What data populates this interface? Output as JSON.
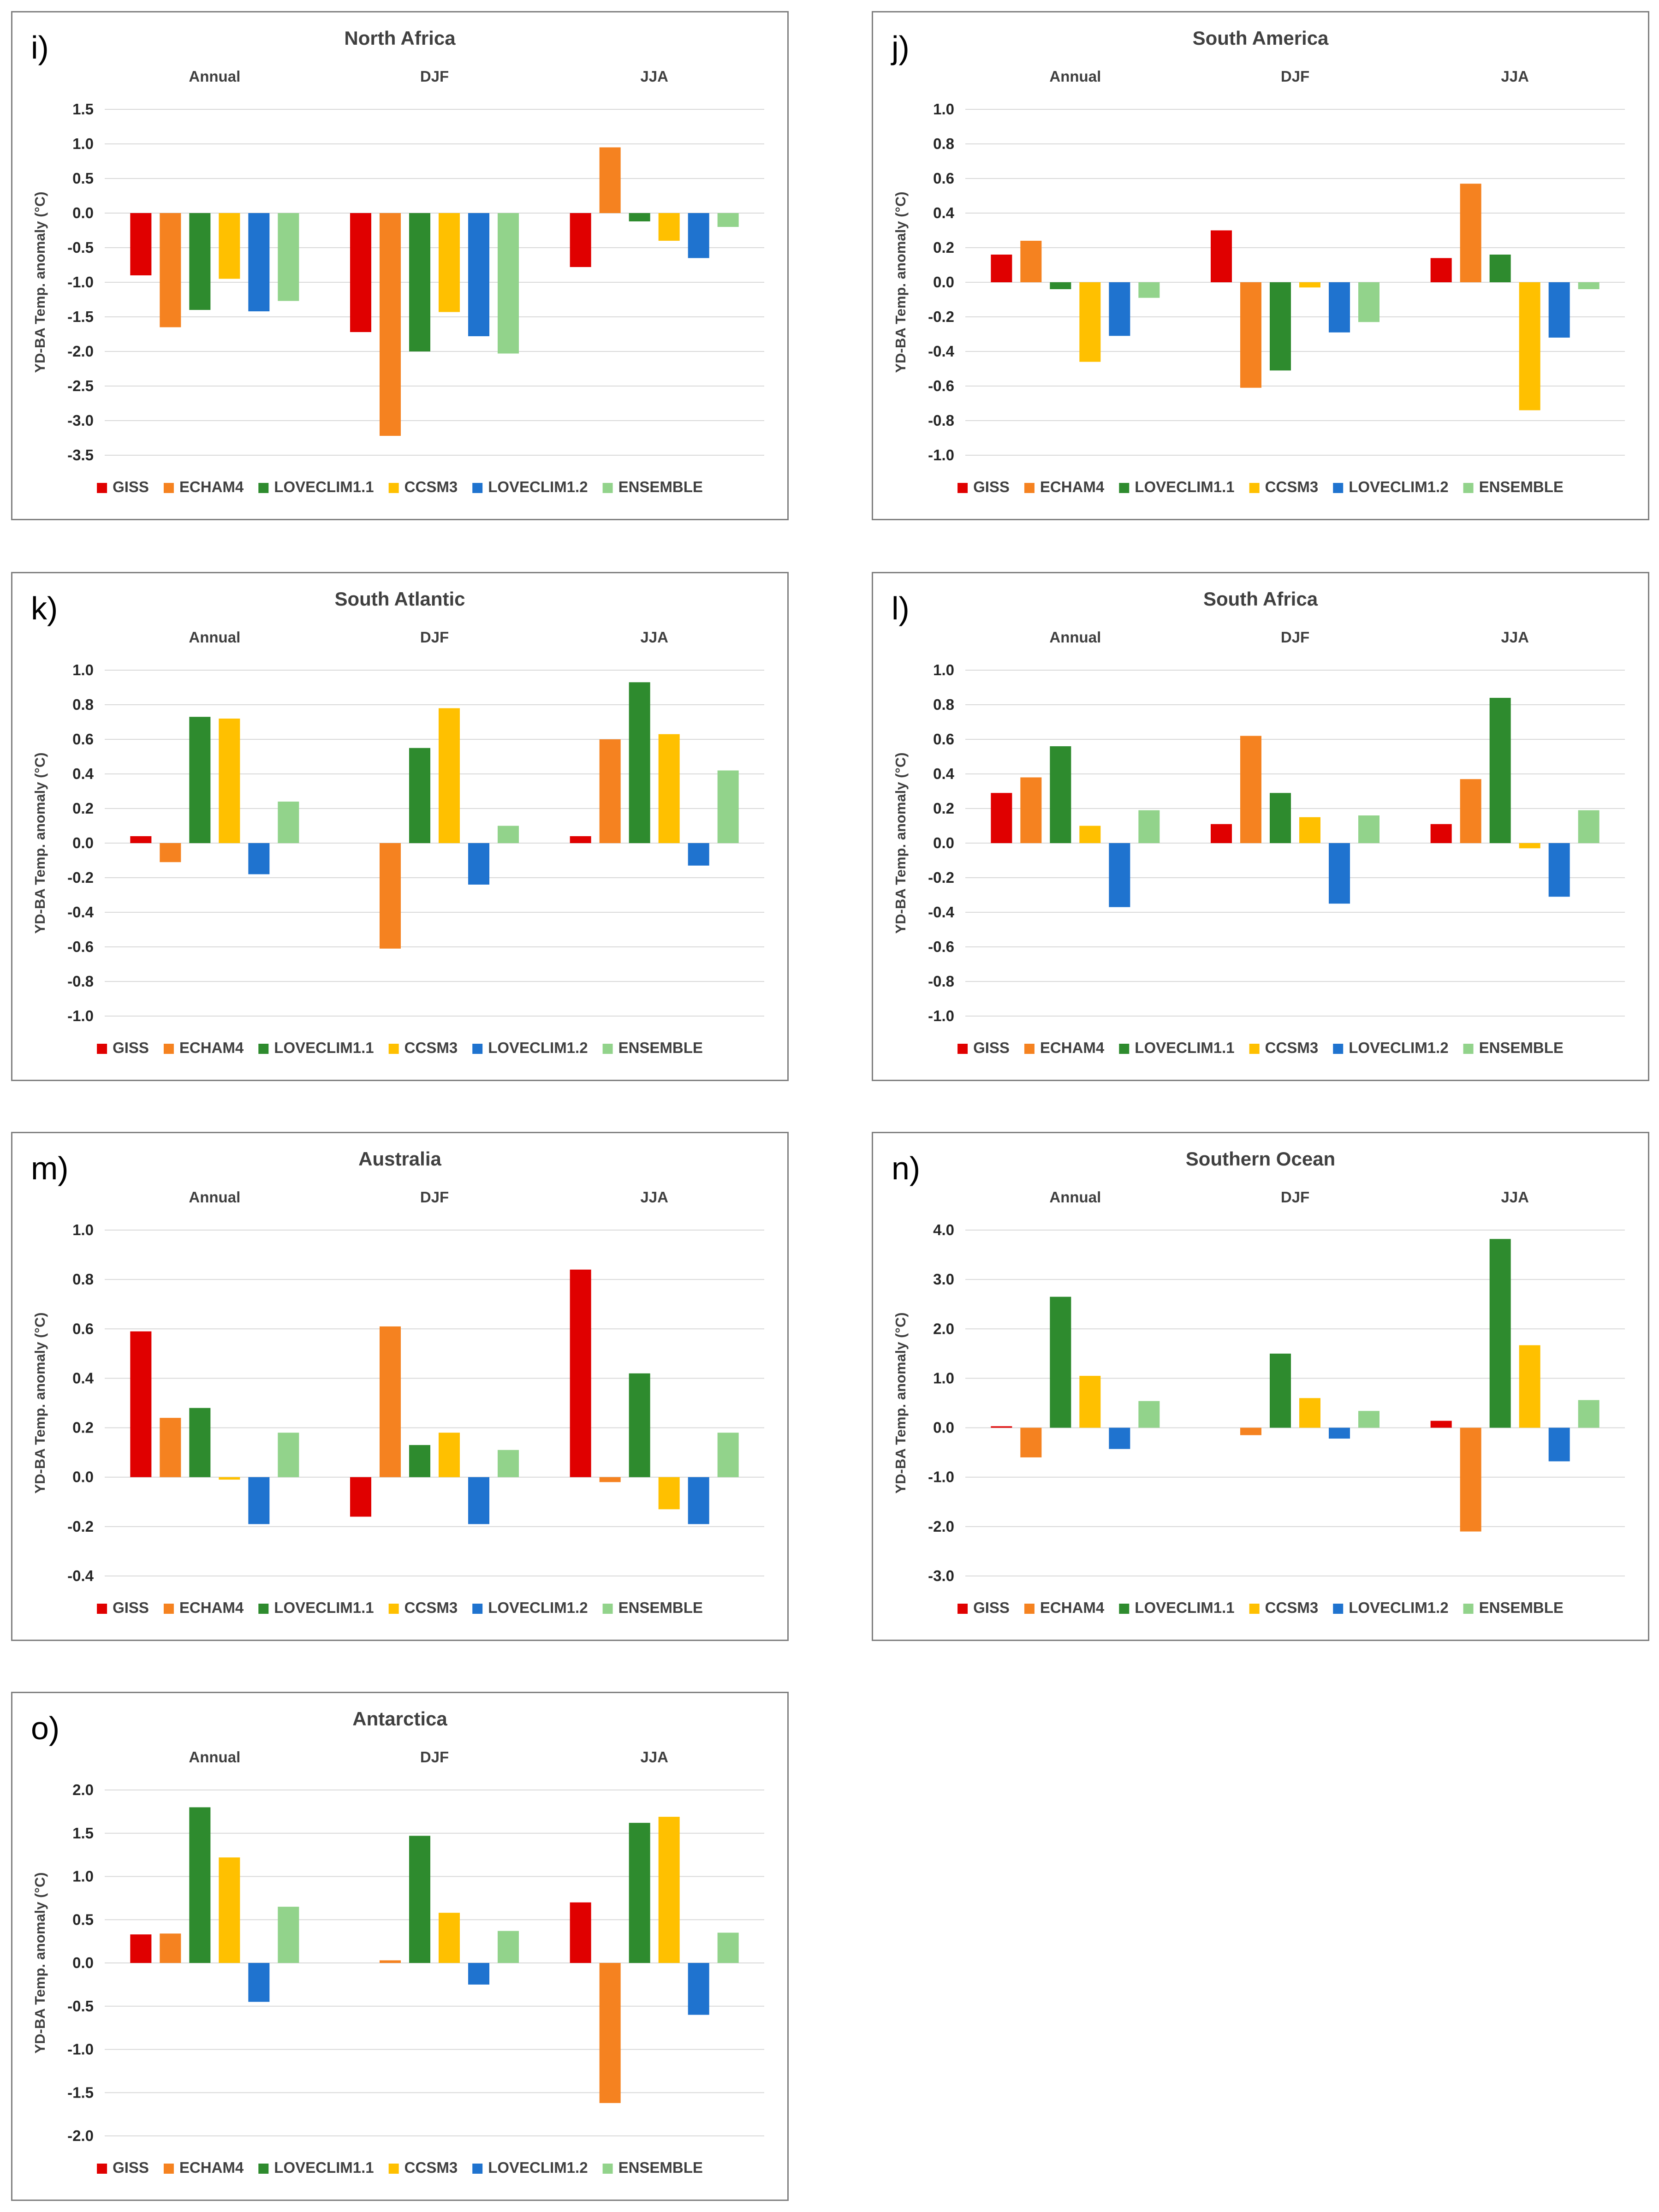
{
  "colors": {
    "GISS": "#e00000",
    "ECHAM4": "#f58220",
    "LOVECLIM1.1": "#2e8b2e",
    "CCSM3": "#ffc000",
    "LOVECLIM1.2": "#1f73cf",
    "ENSEMBLE": "#92d38b"
  },
  "series_names": [
    "GISS",
    "ECHAM4",
    "LOVECLIM1.1",
    "CCSM3",
    "LOVECLIM1.2",
    "ENSEMBLE"
  ],
  "chart_data": [
    {
      "id": "i",
      "letter": "i)",
      "type": "bar",
      "title": "North Africa",
      "categories": [
        "Annual",
        "DJF",
        "JJA"
      ],
      "ylabel": "YD-BA Temp. anomaly (°C)",
      "ylim": [
        -3.5,
        1.5
      ],
      "ytick_step": 0.5,
      "ytick_decimals": 1,
      "y_ticks": [
        "1.5",
        "1.0",
        "0.5",
        "0.0",
        "-0.5",
        "-1.0",
        "-1.5",
        "-2.0",
        "-2.5",
        "-3.0",
        "-3.5"
      ],
      "series": [
        {
          "name": "GISS",
          "values": [
            -0.9,
            -1.72,
            -0.78
          ]
        },
        {
          "name": "ECHAM4",
          "values": [
            -1.65,
            -3.22,
            0.95
          ]
        },
        {
          "name": "LOVECLIM1.1",
          "values": [
            -1.4,
            -2.0,
            -0.12
          ]
        },
        {
          "name": "CCSM3",
          "values": [
            -0.95,
            -1.43,
            -0.4
          ]
        },
        {
          "name": "LOVECLIM1.2",
          "values": [
            -1.42,
            -1.78,
            -0.65
          ]
        },
        {
          "name": "ENSEMBLE",
          "values": [
            -1.27,
            -2.03,
            -0.2
          ]
        }
      ]
    },
    {
      "id": "j",
      "letter": "j)",
      "type": "bar",
      "title": "South America",
      "categories": [
        "Annual",
        "DJF",
        "JJA"
      ],
      "ylabel": "YD-BA Temp. anomaly (°C)",
      "ylim": [
        -1.0,
        1.0
      ],
      "ytick_step": 0.2,
      "ytick_decimals": 1,
      "y_ticks": [
        "1.0",
        "0.8",
        "0.6",
        "0.4",
        "0.2",
        "0.0",
        "-0.2",
        "-0.4",
        "-0.6",
        "-0.8",
        "-1.0"
      ],
      "series": [
        {
          "name": "GISS",
          "values": [
            0.16,
            0.3,
            0.14
          ]
        },
        {
          "name": "ECHAM4",
          "values": [
            0.24,
            -0.61,
            0.57
          ]
        },
        {
          "name": "LOVECLIM1.1",
          "values": [
            -0.04,
            -0.51,
            0.16
          ]
        },
        {
          "name": "CCSM3",
          "values": [
            -0.46,
            -0.03,
            -0.74
          ]
        },
        {
          "name": "LOVECLIM1.2",
          "values": [
            -0.31,
            -0.29,
            -0.32
          ]
        },
        {
          "name": "ENSEMBLE",
          "values": [
            -0.09,
            -0.23,
            -0.04
          ]
        }
      ]
    },
    {
      "id": "k",
      "letter": "k)",
      "type": "bar",
      "title": "South Atlantic",
      "categories": [
        "Annual",
        "DJF",
        "JJA"
      ],
      "ylabel": "YD-BA Temp. anomaly (°C)",
      "ylim": [
        -1.0,
        1.0
      ],
      "ytick_step": 0.2,
      "ytick_decimals": 1,
      "y_ticks": [
        "1.0",
        "0.8",
        "0.6",
        "0.4",
        "0.2",
        "0.0",
        "-0.2",
        "-0.4",
        "-0.6",
        "-0.8",
        "-1.0"
      ],
      "series": [
        {
          "name": "GISS",
          "values": [
            0.04,
            0.0,
            0.04
          ]
        },
        {
          "name": "ECHAM4",
          "values": [
            -0.11,
            -0.61,
            0.6
          ]
        },
        {
          "name": "LOVECLIM1.1",
          "values": [
            0.73,
            0.55,
            0.93
          ]
        },
        {
          "name": "CCSM3",
          "values": [
            0.72,
            0.78,
            0.63
          ]
        },
        {
          "name": "LOVECLIM1.2",
          "values": [
            -0.18,
            -0.24,
            -0.13
          ]
        },
        {
          "name": "ENSEMBLE",
          "values": [
            0.24,
            0.1,
            0.42
          ]
        }
      ]
    },
    {
      "id": "l",
      "letter": "l)",
      "type": "bar",
      "title": "South Africa",
      "categories": [
        "Annual",
        "DJF",
        "JJA"
      ],
      "ylabel": "YD-BA Temp. anomaly (°C)",
      "ylim": [
        -1.0,
        1.0
      ],
      "ytick_step": 0.2,
      "ytick_decimals": 1,
      "y_ticks": [
        "1.0",
        "0.8",
        "0.6",
        "0.4",
        "0.2",
        "0.0",
        "-0.2",
        "-0.4",
        "-0.6",
        "-0.8",
        "-1.0"
      ],
      "series": [
        {
          "name": "GISS",
          "values": [
            0.29,
            0.11,
            0.11
          ]
        },
        {
          "name": "ECHAM4",
          "values": [
            0.38,
            0.62,
            0.37
          ]
        },
        {
          "name": "LOVECLIM1.1",
          "values": [
            0.56,
            0.29,
            0.84
          ]
        },
        {
          "name": "CCSM3",
          "values": [
            0.1,
            0.15,
            -0.03
          ]
        },
        {
          "name": "LOVECLIM1.2",
          "values": [
            -0.37,
            -0.35,
            -0.31
          ]
        },
        {
          "name": "ENSEMBLE",
          "values": [
            0.19,
            0.16,
            0.19
          ]
        }
      ]
    },
    {
      "id": "m",
      "letter": "m)",
      "type": "bar",
      "title": "Australia",
      "categories": [
        "Annual",
        "DJF",
        "JJA"
      ],
      "ylabel": "YD-BA Temp. anomaly (°C)",
      "ylim": [
        -0.4,
        1.0
      ],
      "ytick_step": 0.2,
      "ytick_decimals": 1,
      "y_ticks": [
        "1.0",
        "0.8",
        "0.6",
        "0.4",
        "0.2",
        "0.0",
        "-0.2",
        "-0.4"
      ],
      "series": [
        {
          "name": "GISS",
          "values": [
            0.59,
            -0.16,
            0.84
          ]
        },
        {
          "name": "ECHAM4",
          "values": [
            0.24,
            0.61,
            -0.02
          ]
        },
        {
          "name": "LOVECLIM1.1",
          "values": [
            0.28,
            0.13,
            0.42
          ]
        },
        {
          "name": "CCSM3",
          "values": [
            -0.01,
            0.18,
            -0.13
          ]
        },
        {
          "name": "LOVECLIM1.2",
          "values": [
            -0.19,
            -0.19,
            -0.19
          ]
        },
        {
          "name": "ENSEMBLE",
          "values": [
            0.18,
            0.11,
            0.18
          ]
        }
      ]
    },
    {
      "id": "n",
      "letter": "n)",
      "type": "bar",
      "title": "Southern Ocean",
      "categories": [
        "Annual",
        "DJF",
        "JJA"
      ],
      "ylabel": "YD-BA Temp. anomaly (°C)",
      "ylim": [
        -3.0,
        4.0
      ],
      "ytick_step": 1.0,
      "ytick_decimals": 1,
      "y_ticks": [
        "4.0",
        "3.0",
        "2.0",
        "1.0",
        "0.0",
        "-1.0",
        "-2.0",
        "-3.0"
      ],
      "series": [
        {
          "name": "GISS",
          "values": [
            0.03,
            0.0,
            0.14
          ]
        },
        {
          "name": "ECHAM4",
          "values": [
            -0.6,
            -0.15,
            -2.1
          ]
        },
        {
          "name": "LOVECLIM1.1",
          "values": [
            2.65,
            1.5,
            3.82
          ]
        },
        {
          "name": "CCSM3",
          "values": [
            1.05,
            0.6,
            1.67
          ]
        },
        {
          "name": "LOVECLIM1.2",
          "values": [
            -0.43,
            -0.22,
            -0.68
          ]
        },
        {
          "name": "ENSEMBLE",
          "values": [
            0.54,
            0.34,
            0.56
          ]
        }
      ]
    },
    {
      "id": "o",
      "letter": "o)",
      "type": "bar",
      "title": "Antarctica",
      "categories": [
        "Annual",
        "DJF",
        "JJA"
      ],
      "ylabel": "YD-BA Temp. anomaly (°C)",
      "ylim": [
        -2.0,
        2.0
      ],
      "ytick_step": 0.5,
      "ytick_decimals": 1,
      "y_ticks": [
        "2.0",
        "1.5",
        "1.0",
        "0.5",
        "0.0",
        "-0.5",
        "-1.0",
        "-1.5",
        "-2.0"
      ],
      "series": [
        {
          "name": "GISS",
          "values": [
            0.33,
            0.0,
            0.7
          ]
        },
        {
          "name": "ECHAM4",
          "values": [
            0.34,
            0.03,
            -1.62
          ]
        },
        {
          "name": "LOVECLIM1.1",
          "values": [
            1.8,
            1.47,
            1.62
          ]
        },
        {
          "name": "CCSM3",
          "values": [
            1.22,
            0.58,
            1.69
          ]
        },
        {
          "name": "LOVECLIM1.2",
          "values": [
            -0.45,
            -0.25,
            -0.6
          ]
        },
        {
          "name": "ENSEMBLE",
          "values": [
            0.65,
            0.37,
            0.35
          ]
        }
      ]
    }
  ]
}
